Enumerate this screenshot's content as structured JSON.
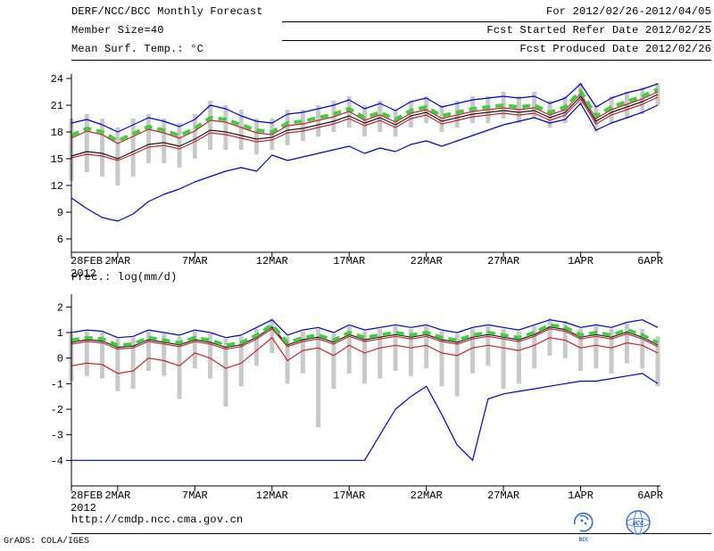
{
  "header": {
    "line1_left": "DERF/NCC/BCC Monthly Forecast",
    "line2_left": "Member Size=40",
    "line3_left": "Mean Surf. Temp.: °C",
    "line1_right": "For 2012/02/26-2012/04/05",
    "line2_right": "Fcst Started Refer Date 2012/02/25",
    "line3_right": "Fcst Produced Date 2012/02/26"
  },
  "footer": {
    "url": "http://cmdp.ncc.cma.gov.cn",
    "credit": "GrADS: COLA/IGES",
    "logos": {
      "bcc": "BCC",
      "ncc": "NCC"
    }
  },
  "chart_data": [
    {
      "type": "line",
      "name": "temperature",
      "title": "Mean Surf. Temp.: °C",
      "ylim": [
        4.5,
        24.5
      ],
      "yticks": [
        6,
        9,
        12,
        15,
        18,
        21,
        24
      ],
      "x_tick_labels": [
        "28FEB",
        "2MAR",
        "7MAR",
        "12MAR",
        "17MAR",
        "22MAR",
        "27MAR",
        "1APR",
        "6APR"
      ],
      "x_tick_days": [
        0,
        3,
        8,
        13,
        18,
        23,
        28,
        33,
        38
      ],
      "x_sub_label": "2012",
      "x_dates": [
        "28FEB",
        "29FEB",
        "1MAR",
        "2MAR",
        "3MAR",
        "4MAR",
        "5MAR",
        "6MAR",
        "7MAR",
        "8MAR",
        "9MAR",
        "10MAR",
        "11MAR",
        "12MAR",
        "13MAR",
        "14MAR",
        "15MAR",
        "16MAR",
        "17MAR",
        "18MAR",
        "19MAR",
        "20MAR",
        "21MAR",
        "22MAR",
        "23MAR",
        "24MAR",
        "25MAR",
        "26MAR",
        "27MAR",
        "28MAR",
        "29MAR",
        "30MAR",
        "31MAR",
        "1APR",
        "2APR",
        "3APR",
        "4APR",
        "5APR",
        "6APR"
      ],
      "bars": {
        "color": "#c9c9c9",
        "lo": [
          12.5,
          13.5,
          13.0,
          12.0,
          13.0,
          14.5,
          14.5,
          14.0,
          15.0,
          16.0,
          16.0,
          16.0,
          15.5,
          16.0,
          16.5,
          17.0,
          17.5,
          18.0,
          18.5,
          17.5,
          18.0,
          17.5,
          18.5,
          19.0,
          18.0,
          18.5,
          19.0,
          19.0,
          19.5,
          19.0,
          19.5,
          18.5,
          19.0,
          21.0,
          18.0,
          19.0,
          19.5,
          20.0,
          21.0
        ],
        "hi": [
          19.5,
          20.0,
          19.5,
          18.5,
          19.5,
          20.0,
          19.5,
          19.0,
          20.0,
          21.5,
          21.0,
          20.5,
          19.5,
          19.5,
          20.5,
          20.5,
          21.0,
          21.5,
          22.0,
          21.0,
          21.5,
          20.5,
          21.5,
          22.0,
          21.0,
          21.5,
          22.0,
          22.0,
          22.5,
          22.0,
          22.5,
          21.5,
          22.0,
          23.5,
          21.0,
          22.0,
          22.5,
          23.0,
          23.5
        ]
      },
      "series": [
        {
          "name": "ensemble-max",
          "color": "#0000cc",
          "width": 1.2,
          "dash": "",
          "values": [
            19.0,
            19.4,
            18.8,
            18.0,
            18.8,
            19.6,
            19.2,
            18.6,
            19.4,
            21.0,
            20.6,
            19.8,
            19.2,
            19.0,
            20.0,
            20.2,
            20.6,
            21.0,
            21.6,
            20.6,
            21.2,
            20.4,
            21.4,
            21.8,
            20.8,
            21.2,
            21.6,
            21.8,
            22.0,
            21.8,
            22.0,
            21.2,
            21.8,
            23.4,
            20.8,
            21.8,
            22.4,
            22.8,
            23.4
          ]
        },
        {
          "name": "ensemble-min",
          "color": "#0000cc",
          "width": 1.2,
          "dash": "",
          "values": [
            10.6,
            9.4,
            8.4,
            8.0,
            8.8,
            10.2,
            11.0,
            11.6,
            12.4,
            13.0,
            13.6,
            14.0,
            13.6,
            15.4,
            14.8,
            15.2,
            15.6,
            16.0,
            16.4,
            15.6,
            16.2,
            15.8,
            16.6,
            17.0,
            16.4,
            17.0,
            17.6,
            18.2,
            18.8,
            19.2,
            19.6,
            19.0,
            19.4,
            21.2,
            18.2,
            19.0,
            19.6,
            20.2,
            21.0
          ]
        },
        {
          "name": "upper-red",
          "color": "#cc2233",
          "width": 1.2,
          "dash": "",
          "values": [
            17.3,
            18.1,
            17.7,
            16.7,
            17.5,
            18.3,
            17.9,
            17.3,
            18.1,
            19.3,
            19.1,
            18.5,
            17.9,
            17.7,
            18.7,
            18.9,
            19.3,
            19.7,
            20.3,
            19.3,
            19.9,
            19.1,
            20.1,
            20.5,
            19.5,
            19.9,
            20.3,
            20.5,
            20.7,
            20.5,
            20.7,
            19.9,
            20.5,
            22.3,
            19.5,
            20.5,
            21.1,
            21.7,
            22.5
          ]
        },
        {
          "name": "control-black",
          "color": "#1a1a1a",
          "width": 1.2,
          "dash": "",
          "values": [
            15.3,
            15.8,
            15.6,
            15.0,
            15.8,
            16.6,
            16.8,
            16.4,
            17.2,
            18.2,
            18.0,
            17.6,
            17.2,
            17.4,
            18.2,
            18.4,
            18.8,
            19.2,
            19.8,
            19.0,
            19.6,
            18.8,
            19.8,
            20.2,
            19.2,
            19.6,
            20.0,
            20.2,
            20.4,
            20.2,
            20.4,
            19.6,
            20.2,
            22.0,
            19.2,
            20.2,
            20.8,
            21.4,
            22.2
          ]
        },
        {
          "name": "lower-red",
          "color": "#cc2233",
          "width": 1.2,
          "dash": "",
          "values": [
            15.1,
            15.5,
            15.3,
            14.8,
            15.5,
            16.3,
            16.5,
            16.1,
            16.9,
            17.9,
            17.7,
            17.3,
            16.9,
            17.1,
            17.9,
            18.1,
            18.5,
            18.9,
            19.5,
            18.7,
            19.3,
            18.5,
            19.5,
            19.9,
            18.9,
            19.3,
            19.7,
            19.9,
            20.1,
            19.9,
            20.1,
            19.3,
            19.9,
            21.7,
            18.9,
            19.9,
            20.5,
            21.1,
            21.9
          ]
        },
        {
          "name": "ensemble-mean",
          "color": "#3fcf3f",
          "width": 4,
          "dash": "9 6",
          "values": [
            17.6,
            18.4,
            18.0,
            17.0,
            17.8,
            18.6,
            18.2,
            17.6,
            18.4,
            19.6,
            19.4,
            18.8,
            18.2,
            18.0,
            19.0,
            19.2,
            19.6,
            20.0,
            20.6,
            19.6,
            20.2,
            19.4,
            20.4,
            20.8,
            19.8,
            20.2,
            20.6,
            20.8,
            21.0,
            20.8,
            21.0,
            20.2,
            20.8,
            22.6,
            19.8,
            20.8,
            21.4,
            22.0,
            22.8
          ]
        }
      ]
    },
    {
      "type": "line",
      "name": "precipitation",
      "title": "Prec.: log(mm/d)",
      "ylim": [
        -5,
        2.5
      ],
      "yticks": [
        2,
        1,
        0,
        -1,
        -2,
        -3,
        -4
      ],
      "x_tick_labels": [
        "28FEB",
        "2MAR",
        "7MAR",
        "12MAR",
        "17MAR",
        "22MAR",
        "27MAR",
        "1APR",
        "6APR"
      ],
      "x_tick_days": [
        0,
        3,
        8,
        13,
        18,
        23,
        28,
        33,
        38
      ],
      "x_sub_label": "2012",
      "x_dates": [
        "28FEB",
        "29FEB",
        "1MAR",
        "2MAR",
        "3MAR",
        "4MAR",
        "5MAR",
        "6MAR",
        "7MAR",
        "8MAR",
        "9MAR",
        "10MAR",
        "11MAR",
        "12MAR",
        "13MAR",
        "14MAR",
        "15MAR",
        "16MAR",
        "17MAR",
        "18MAR",
        "19MAR",
        "20MAR",
        "21MAR",
        "22MAR",
        "23MAR",
        "24MAR",
        "25MAR",
        "26MAR",
        "27MAR",
        "28MAR",
        "29MAR",
        "30MAR",
        "31MAR",
        "1APR",
        "2APR",
        "3APR",
        "4APR",
        "5APR",
        "6APR"
      ],
      "bars": {
        "color": "#c9c9c9",
        "lo": [
          -0.9,
          -0.7,
          -0.8,
          -1.3,
          -1.2,
          -0.5,
          -0.7,
          -1.6,
          -0.4,
          -0.8,
          -1.9,
          -1.1,
          -0.3,
          0.2,
          -1.0,
          -0.6,
          -2.7,
          -1.2,
          -0.6,
          -1.0,
          -0.8,
          -0.5,
          -0.7,
          -0.4,
          -1.1,
          -1.5,
          -0.6,
          -0.3,
          -1.2,
          -1.0,
          -0.4,
          0.1,
          0.0,
          -0.5,
          -0.4,
          -0.6,
          -0.2,
          -0.4,
          -1.1
        ],
        "hi": [
          0.95,
          1.05,
          1.0,
          0.75,
          0.8,
          1.05,
          0.95,
          0.85,
          1.05,
          0.95,
          0.75,
          0.85,
          1.15,
          1.55,
          0.85,
          1.05,
          1.15,
          0.95,
          1.25,
          1.05,
          1.15,
          1.25,
          1.15,
          1.25,
          1.05,
          0.95,
          1.15,
          1.25,
          1.15,
          1.05,
          1.25,
          1.55,
          1.45,
          1.15,
          1.25,
          1.15,
          1.35,
          1.15,
          0.85
        ]
      },
      "series": [
        {
          "name": "ensemble-max",
          "color": "#0000cc",
          "width": 1.2,
          "dash": "",
          "values": [
            1.0,
            1.1,
            1.05,
            0.8,
            0.85,
            1.1,
            1.0,
            0.9,
            1.1,
            1.0,
            0.8,
            0.9,
            1.2,
            1.5,
            0.9,
            1.1,
            1.2,
            1.0,
            1.3,
            1.1,
            1.2,
            1.3,
            1.2,
            1.3,
            1.1,
            1.0,
            1.2,
            1.3,
            1.2,
            1.1,
            1.3,
            1.5,
            1.4,
            1.2,
            1.3,
            1.2,
            1.4,
            1.5,
            1.2
          ]
        },
        {
          "name": "ensemble-min",
          "color": "#0000cc",
          "width": 1.2,
          "dash": "",
          "values": [
            -4,
            -4,
            -4,
            -4,
            -4,
            -4,
            -4,
            -4,
            -4,
            -4,
            -4,
            -4,
            -4,
            -4,
            -4,
            -4,
            -4,
            -4,
            -4,
            -4,
            -3.0,
            -2.0,
            -1.5,
            -1.1,
            -2.2,
            -3.4,
            -4.0,
            -1.6,
            -1.4,
            -1.3,
            -1.2,
            -1.1,
            -1.0,
            -0.9,
            -0.9,
            -0.8,
            -0.7,
            -0.6,
            -1.0
          ]
        },
        {
          "name": "upper-red",
          "color": "#cc2233",
          "width": 1.2,
          "dash": "",
          "values": [
            0.55,
            0.65,
            0.6,
            0.35,
            0.4,
            0.65,
            0.55,
            0.45,
            0.65,
            0.55,
            0.35,
            0.45,
            0.75,
            1.15,
            0.45,
            0.65,
            0.75,
            0.55,
            0.85,
            0.65,
            0.75,
            0.85,
            0.75,
            0.85,
            0.65,
            0.55,
            0.75,
            0.85,
            0.75,
            0.65,
            0.85,
            1.15,
            1.05,
            0.75,
            0.85,
            0.75,
            0.95,
            0.75,
            0.45
          ]
        },
        {
          "name": "control-black",
          "color": "#1a1a1a",
          "width": 1.2,
          "dash": "",
          "values": [
            0.62,
            0.72,
            0.67,
            0.42,
            0.47,
            0.72,
            0.62,
            0.52,
            0.72,
            0.62,
            0.42,
            0.52,
            0.82,
            1.22,
            0.52,
            0.72,
            0.82,
            0.62,
            0.92,
            0.72,
            0.82,
            0.92,
            0.82,
            0.92,
            0.72,
            0.62,
            0.82,
            0.92,
            0.82,
            0.72,
            0.92,
            1.22,
            1.12,
            0.82,
            0.92,
            0.82,
            1.02,
            0.82,
            0.52
          ]
        },
        {
          "name": "lower-red",
          "color": "#cc2233",
          "width": 1.2,
          "dash": "",
          "values": [
            -0.3,
            -0.2,
            -0.25,
            -0.6,
            -0.5,
            0.0,
            -0.1,
            -0.3,
            0.2,
            0.0,
            -0.4,
            -0.2,
            0.3,
            0.8,
            -0.1,
            0.3,
            0.4,
            0.1,
            0.5,
            0.2,
            0.4,
            0.5,
            0.4,
            0.5,
            0.2,
            0.1,
            0.4,
            0.5,
            0.4,
            0.3,
            0.5,
            0.8,
            0.7,
            0.4,
            0.5,
            0.4,
            0.6,
            0.5,
            0.2
          ]
        },
        {
          "name": "ensemble-mean",
          "color": "#3fcf3f",
          "width": 4,
          "dash": "9 6",
          "values": [
            0.7,
            0.8,
            0.75,
            0.5,
            0.55,
            0.8,
            0.7,
            0.6,
            0.8,
            0.7,
            0.5,
            0.6,
            0.9,
            1.3,
            0.6,
            0.8,
            0.9,
            0.7,
            1.0,
            0.8,
            0.9,
            1.0,
            0.9,
            1.0,
            0.8,
            0.7,
            0.9,
            1.0,
            0.9,
            0.8,
            1.0,
            1.3,
            1.2,
            0.9,
            1.0,
            0.9,
            1.1,
            0.9,
            0.6
          ]
        }
      ]
    }
  ]
}
